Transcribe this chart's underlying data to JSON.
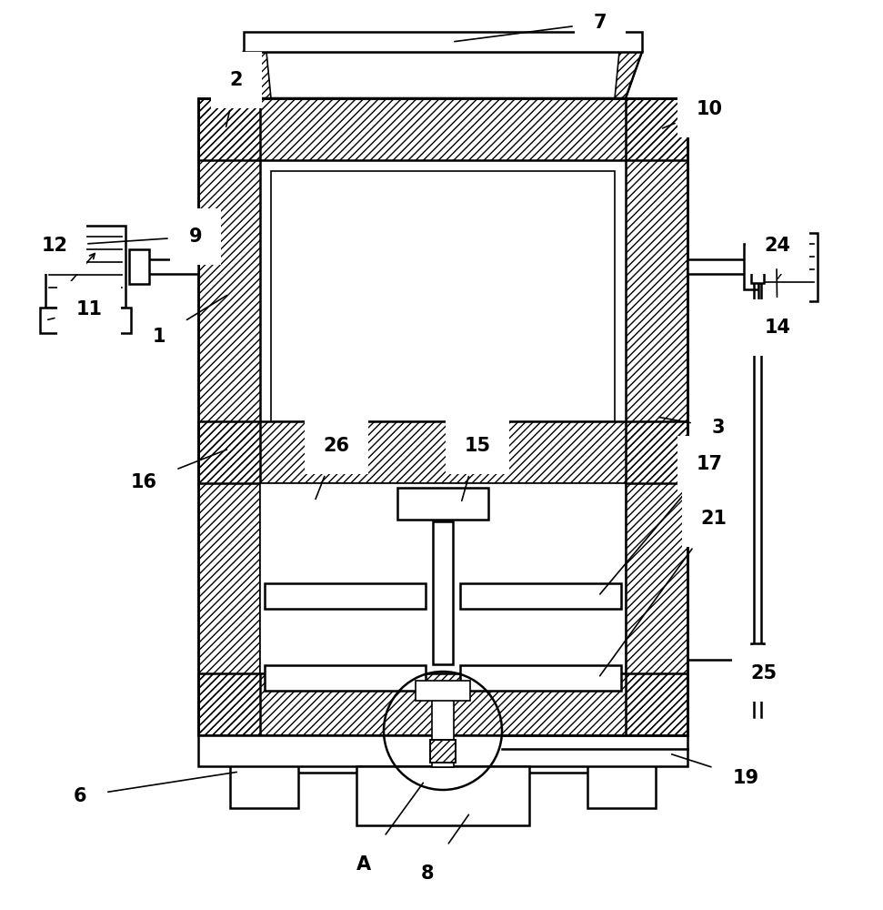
{
  "bg_color": "#ffffff",
  "line_color": "#000000",
  "label_fontsize": 15,
  "label_fontweight": "bold",
  "figsize": [
    9.71,
    10.0
  ],
  "dpi": 100
}
